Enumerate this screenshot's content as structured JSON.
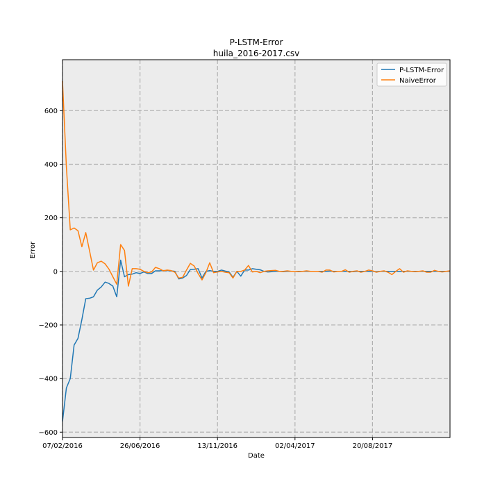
{
  "chart_data": {
    "type": "line",
    "title": "P-LSTM-Error",
    "subtitle": "huila_2016-2017.csv",
    "xlabel": "Date",
    "ylabel": "Error",
    "ylim": [
      -620,
      790
    ],
    "yticks": [
      600,
      400,
      200,
      0,
      -200,
      -400,
      -600
    ],
    "xticks": [
      "07/02/2016",
      "26/06/2016",
      "13/11/2016",
      "02/04/2017",
      "20/08/2017"
    ],
    "xlim": [
      "07/02/2016",
      "07/01/2018"
    ],
    "grid": true,
    "legend_position": "upper-right",
    "x": [
      "07/02/2016",
      "14/02/2016",
      "21/02/2016",
      "28/02/2016",
      "06/03/2016",
      "13/03/2016",
      "20/03/2016",
      "27/03/2016",
      "03/04/2016",
      "10/04/2016",
      "17/04/2016",
      "24/04/2016",
      "01/05/2016",
      "08/05/2016",
      "15/05/2016",
      "22/05/2016",
      "29/05/2016",
      "05/06/2016",
      "12/06/2016",
      "19/06/2016",
      "26/06/2016",
      "03/07/2016",
      "10/07/2016",
      "17/07/2016",
      "24/07/2016",
      "31/07/2016",
      "07/08/2016",
      "14/08/2016",
      "21/08/2016",
      "28/08/2016",
      "04/09/2016",
      "11/09/2016",
      "18/09/2016",
      "25/09/2016",
      "02/10/2016",
      "09/10/2016",
      "16/10/2016",
      "23/10/2016",
      "30/10/2016",
      "06/11/2016",
      "13/11/2016",
      "20/11/2016",
      "27/11/2016",
      "04/12/2016",
      "11/12/2016",
      "18/12/2016",
      "25/12/2016",
      "01/01/2017",
      "08/01/2017",
      "15/01/2017",
      "22/01/2017",
      "29/01/2017",
      "05/02/2017",
      "12/02/2017",
      "19/02/2017",
      "26/02/2017",
      "05/03/2017",
      "12/03/2017",
      "19/03/2017",
      "26/03/2017",
      "02/04/2017",
      "09/04/2017",
      "16/04/2017",
      "23/04/2017",
      "30/04/2017",
      "07/05/2017",
      "14/05/2017",
      "21/05/2017",
      "28/05/2017",
      "04/06/2017",
      "11/06/2017",
      "18/06/2017",
      "25/06/2017",
      "02/07/2017",
      "09/07/2017",
      "16/07/2017",
      "23/07/2017",
      "30/07/2017",
      "06/08/2017",
      "13/08/2017",
      "20/08/2017",
      "27/08/2017",
      "03/09/2017",
      "10/09/2017",
      "17/09/2017",
      "24/09/2017",
      "01/10/2017",
      "08/10/2017",
      "15/10/2017",
      "22/10/2017",
      "29/10/2017",
      "05/11/2017",
      "12/11/2017",
      "19/11/2017",
      "26/11/2017",
      "03/12/2017",
      "10/12/2017",
      "17/12/2017",
      "24/12/2017",
      "31/12/2017",
      "07/01/2018"
    ],
    "series": [
      {
        "name": "P-LSTM-Error",
        "color": "#1f77b4",
        "values": [
          -560,
          -435,
          -400,
          -275,
          -250,
          -180,
          -102,
          -100,
          -95,
          -70,
          -58,
          -40,
          -45,
          -55,
          -95,
          42,
          -20,
          -12,
          -10,
          -5,
          -8,
          -2,
          -8,
          -8,
          2,
          2,
          3,
          3,
          2,
          0,
          -28,
          -25,
          -15,
          7,
          8,
          10,
          -25,
          0,
          3,
          0,
          0,
          5,
          1,
          -2,
          -22,
          0,
          -18,
          5,
          5,
          10,
          8,
          6,
          0,
          -2,
          -1,
          0,
          0,
          -1,
          0,
          0,
          0,
          0,
          0,
          0,
          0,
          0,
          0,
          0,
          0,
          1,
          0,
          0,
          0,
          0,
          0,
          -1,
          0,
          0,
          0,
          0,
          0,
          -1,
          0,
          0,
          0,
          0,
          0,
          0,
          0,
          0,
          0,
          0,
          0,
          0,
          0,
          0,
          0,
          0,
          0,
          0,
          0
        ]
      },
      {
        "name": "NaiveError",
        "color": "#ff7f0e",
        "values": [
          710,
          390,
          155,
          162,
          152,
          92,
          145,
          75,
          5,
          32,
          38,
          28,
          8,
          -20,
          -48,
          100,
          78,
          -55,
          10,
          10,
          8,
          0,
          -5,
          -2,
          15,
          10,
          2,
          5,
          3,
          -3,
          -25,
          -22,
          5,
          30,
          20,
          -8,
          -32,
          -5,
          32,
          -5,
          -2,
          0,
          -3,
          -5,
          -25,
          0,
          0,
          5,
          22,
          -2,
          0,
          -5,
          0,
          2,
          3,
          4,
          0,
          0,
          2,
          0,
          0,
          -1,
          0,
          2,
          0,
          0,
          0,
          -3,
          5,
          5,
          -2,
          0,
          0,
          6,
          -3,
          0,
          2,
          -3,
          0,
          5,
          2,
          -3,
          0,
          2,
          -3,
          -12,
          0,
          10,
          -3,
          2,
          0,
          -1,
          0,
          2,
          -3,
          -3,
          4,
          0,
          -2,
          0,
          2
        ]
      }
    ]
  }
}
